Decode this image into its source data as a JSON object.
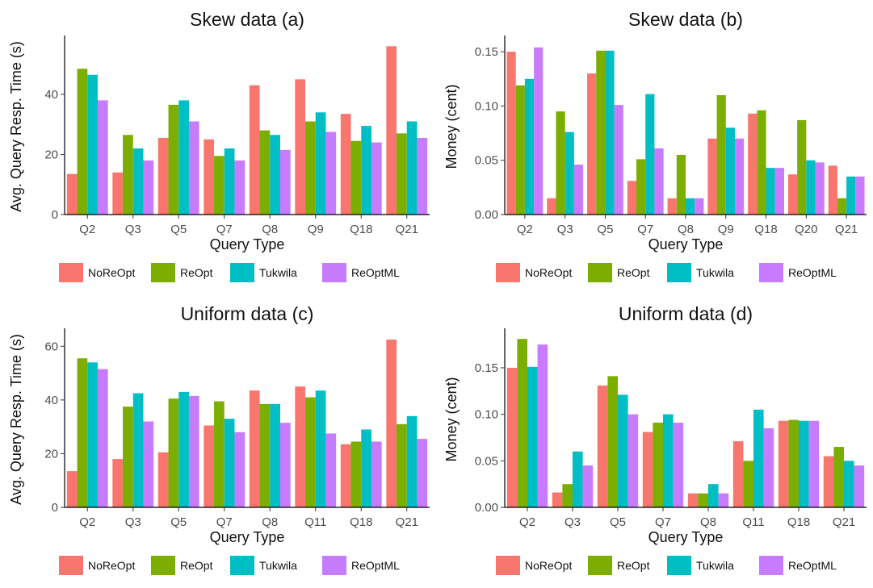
{
  "palette": {
    "NoReOpt": "#F8766D",
    "ReOpt": "#7CAE00",
    "Tukwila": "#00BFC4",
    "ReOptML": "#C77CFF"
  },
  "chart_data": [
    {
      "type": "bar",
      "title": "Skew data (a)",
      "xlabel": "Query Type",
      "ylabel": "Avg. Query Resp. Time (s)",
      "categories": [
        "Q2",
        "Q3",
        "Q5",
        "Q7",
        "Q8",
        "Q9",
        "Q18",
        "Q21"
      ],
      "yticks": [
        0,
        20,
        40
      ],
      "ylim": [
        0,
        58.5
      ],
      "legend": "bottom",
      "series": [
        {
          "name": "NoReOpt",
          "values": [
            13.5,
            14,
            25.5,
            25,
            43,
            45,
            33.5,
            56
          ]
        },
        {
          "name": "ReOpt",
          "values": [
            48.5,
            26.5,
            36.5,
            19.5,
            28,
            31,
            24.5,
            27
          ]
        },
        {
          "name": "Tukwila",
          "values": [
            46.5,
            22,
            38,
            22,
            26.5,
            34,
            29.5,
            31
          ]
        },
        {
          "name": "ReOptML",
          "values": [
            38,
            18,
            31,
            18,
            21.5,
            27.5,
            24,
            25.5
          ]
        }
      ]
    },
    {
      "type": "bar",
      "title": "Skew data (b)",
      "xlabel": "Query Type",
      "ylabel": "Money (cent)",
      "categories": [
        "Q2",
        "Q3",
        "Q5",
        "Q7",
        "Q8",
        "Q9",
        "Q18",
        "Q20",
        "Q21"
      ],
      "yticks": [
        0.0,
        0.05,
        0.1,
        0.15
      ],
      "ytick_labels": [
        "0.00",
        "0.05",
        "0.10",
        "0.15"
      ],
      "ylim": [
        0,
        0.162
      ],
      "legend": "bottom",
      "series": [
        {
          "name": "NoReOpt",
          "values": [
            0.15,
            0.015,
            0.13,
            0.031,
            0.015,
            0.07,
            0.093,
            0.037,
            0.045
          ]
        },
        {
          "name": "ReOpt",
          "values": [
            0.119,
            0.095,
            0.151,
            0.051,
            0.055,
            0.11,
            0.096,
            0.087,
            0.015
          ]
        },
        {
          "name": "Tukwila",
          "values": [
            0.125,
            0.076,
            0.151,
            0.111,
            0.015,
            0.08,
            0.043,
            0.05,
            0.035
          ]
        },
        {
          "name": "ReOptML",
          "values": [
            0.154,
            0.046,
            0.101,
            0.061,
            0.015,
            0.07,
            0.043,
            0.048,
            0.035
          ]
        }
      ]
    },
    {
      "type": "bar",
      "title": "Uniform data (c)",
      "xlabel": "Query Type",
      "ylabel": "Avg. Query Resp. Time (s)",
      "categories": [
        "Q2",
        "Q3",
        "Q5",
        "Q7",
        "Q8",
        "Q11",
        "Q18",
        "Q21"
      ],
      "yticks": [
        0,
        20,
        40,
        60
      ],
      "ylim": [
        0,
        65.5
      ],
      "legend": "bottom",
      "series": [
        {
          "name": "NoReOpt",
          "values": [
            13.5,
            18,
            20.5,
            30.5,
            43.5,
            45,
            23.5,
            62.5
          ]
        },
        {
          "name": "ReOpt",
          "values": [
            55.5,
            37.5,
            40.5,
            39.5,
            38.5,
            41,
            24.5,
            31
          ]
        },
        {
          "name": "Tukwila",
          "values": [
            54,
            42.5,
            43,
            33,
            38.5,
            43.5,
            29,
            34
          ]
        },
        {
          "name": "ReOptML",
          "values": [
            51.5,
            32,
            41.5,
            28,
            31.5,
            27.5,
            24.5,
            25.5
          ]
        }
      ]
    },
    {
      "type": "bar",
      "title": "Uniform data (d)",
      "xlabel": "Query Type",
      "ylabel": "Money (cent)",
      "categories": [
        "Q2",
        "Q3",
        "Q5",
        "Q7",
        "Q8",
        "Q11",
        "Q18",
        "Q21"
      ],
      "yticks": [
        0.0,
        0.05,
        0.1,
        0.15
      ],
      "ytick_labels": [
        "0.00",
        "0.05",
        "0.10",
        "0.15"
      ],
      "ylim": [
        0,
        0.189
      ],
      "legend": "bottom",
      "series": [
        {
          "name": "NoReOpt",
          "values": [
            0.15,
            0.016,
            0.131,
            0.081,
            0.015,
            0.071,
            0.093,
            0.055
          ]
        },
        {
          "name": "ReOpt",
          "values": [
            0.181,
            0.025,
            0.141,
            0.091,
            0.015,
            0.05,
            0.094,
            0.065
          ]
        },
        {
          "name": "Tukwila",
          "values": [
            0.151,
            0.06,
            0.121,
            0.1,
            0.025,
            0.105,
            0.093,
            0.05
          ]
        },
        {
          "name": "ReOptML",
          "values": [
            0.175,
            0.045,
            0.1,
            0.091,
            0.015,
            0.085,
            0.093,
            0.045
          ]
        }
      ]
    }
  ]
}
